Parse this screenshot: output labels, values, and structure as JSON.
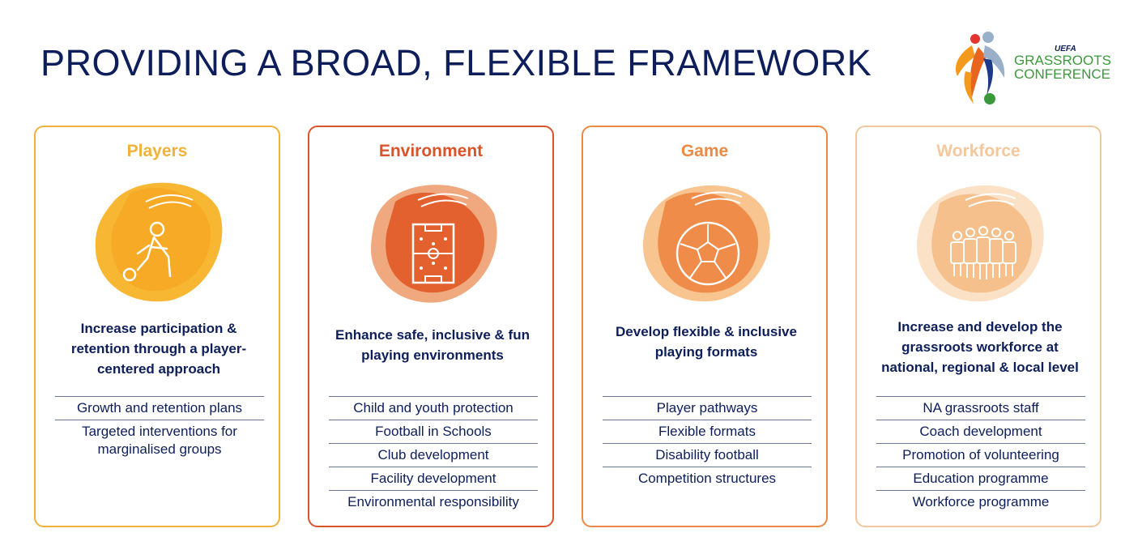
{
  "page": {
    "title": "PROVIDING A BROAD, FLEXIBLE FRAMEWORK"
  },
  "logo": {
    "uefa": "UEFA",
    "line1": "GRASSROOTS",
    "line2": "CONFERENCE"
  },
  "cards": [
    {
      "title": "Players",
      "color": "#f0b23a",
      "icon": "football-player-icon",
      "description": "Increase participation & retention through a player-centered approach",
      "items": [
        "Growth and retention plans",
        "Targeted interventions for marginalised groups"
      ]
    },
    {
      "title": "Environment",
      "color": "#d9532b",
      "icon": "football-pitch-icon",
      "description": "Enhance safe, inclusive & fun playing environments",
      "items": [
        "Child and youth protection",
        "Football in Schools",
        "Club development",
        "Facility development",
        "Environmental responsibility"
      ]
    },
    {
      "title": "Game",
      "color": "#eb8a45",
      "icon": "football-ball-icon",
      "description": "Develop flexible & inclusive playing formats",
      "items": [
        "Player pathways",
        "Flexible formats",
        "Disability football",
        "Competition structures"
      ]
    },
    {
      "title": "Workforce",
      "color": "#f4c89c",
      "icon": "people-group-icon",
      "description": "Increase and develop the grassroots workforce at national, regional & local level",
      "items": [
        "NA grassroots staff",
        "Coach development",
        "Promotion of volunteering",
        "Education programme",
        "Workforce programme"
      ]
    }
  ]
}
